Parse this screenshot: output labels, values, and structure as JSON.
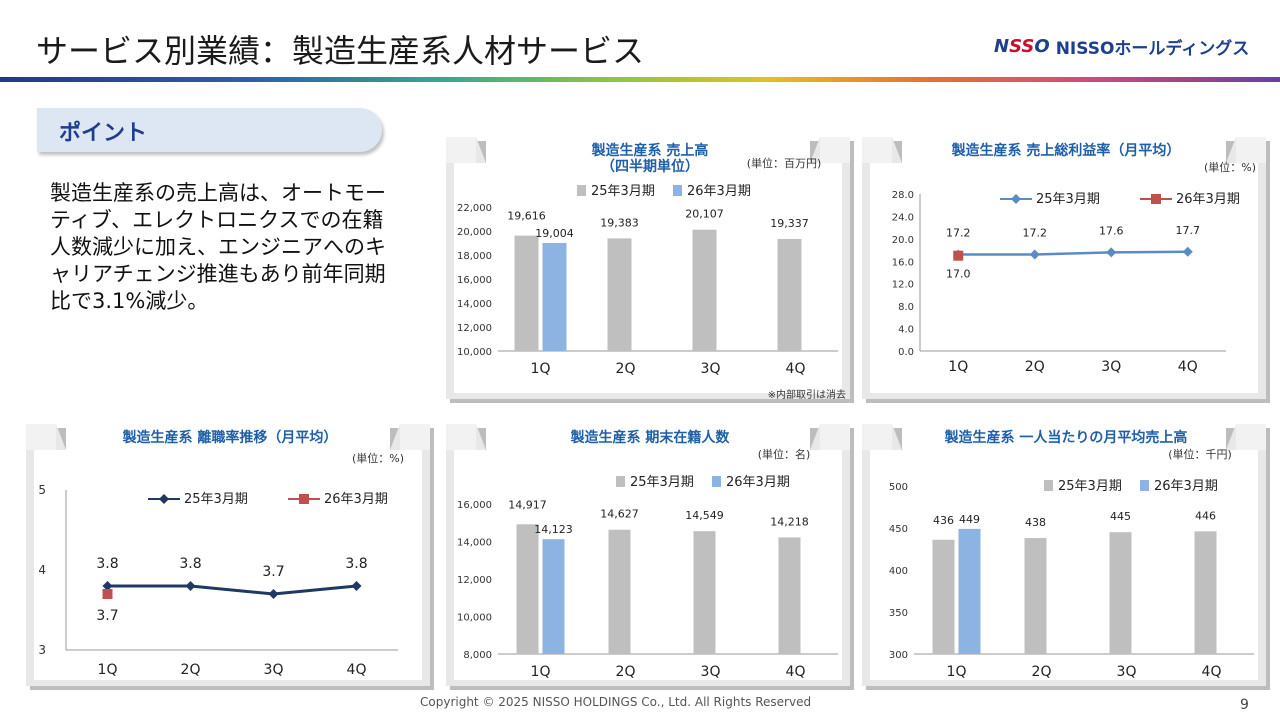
{
  "header": {
    "title": "サービス別業績：製造生産系人材サービス",
    "logo_mark_n": "N",
    "logo_mark_s": "SS",
    "logo_mark_o": "O",
    "logo_text": "NISSOホールディングス"
  },
  "point": {
    "tab_label": "ポイント",
    "body": "製造生産系の売上高は、オートモーティブ、エレクトロニクスでの在籍人数減少に加え、エンジニアへのキャリアチェンジ推進もあり前年同期比で3.1%減少。"
  },
  "footer": {
    "copyright": "Copyright © 2025 NISSO HOLDINGS Co., Ltd. All Rights Reserved",
    "page_number": "9"
  },
  "colors": {
    "bar_prev": "#bfbfbf",
    "bar_curr": "#8db3e2",
    "line_prev_sales": "#5b8bc5",
    "line_prev_turnover": "#1f3864",
    "marker_curr": "#c0504d",
    "title_blue": "#1f5fa8"
  },
  "chart_data": [
    {
      "id": "sales",
      "type": "bar",
      "title": "製造生産系 売上高",
      "subtitle": "（四半期単位）",
      "unit": "(単位：百万円)",
      "note": "※内部取引は消去",
      "categories": [
        "1Q",
        "2Q",
        "3Q",
        "4Q"
      ],
      "ylim": [
        10000,
        22000
      ],
      "yticks": [
        "10,000",
        "12,000",
        "14,000",
        "16,000",
        "18,000",
        "20,000",
        "22,000"
      ],
      "series": [
        {
          "name": "25年3月期",
          "values": [
            19616,
            19383,
            20107,
            19337
          ],
          "labels": [
            "19,616",
            "19,383",
            "20,107",
            "19,337"
          ]
        },
        {
          "name": "26年3月期",
          "values": [
            19004,
            null,
            null,
            null
          ],
          "labels": [
            "19,004",
            "",
            "",
            ""
          ]
        }
      ],
      "legend": "top"
    },
    {
      "id": "gross_margin",
      "type": "line",
      "title": "製造生産系 売上総利益率（月平均）",
      "unit": "(単位：%)",
      "categories": [
        "1Q",
        "2Q",
        "3Q",
        "4Q"
      ],
      "ylim": [
        0,
        28
      ],
      "yticks": [
        "0.0",
        "4.0",
        "8.0",
        "12.0",
        "16.0",
        "20.0",
        "24.0",
        "28.0"
      ],
      "series": [
        {
          "name": "25年3月期",
          "values": [
            17.2,
            17.2,
            17.6,
            17.7
          ],
          "labels": [
            "17.2",
            "17.2",
            "17.6",
            "17.7"
          ]
        },
        {
          "name": "26年3月期",
          "values": [
            17.0,
            null,
            null,
            null
          ],
          "labels": [
            "17.0",
            "",
            "",
            ""
          ]
        }
      ],
      "legend": "top"
    },
    {
      "id": "turnover",
      "type": "line",
      "title": "製造生産系 離職率推移（月平均）",
      "unit": "(単位：%)",
      "categories": [
        "1Q",
        "2Q",
        "3Q",
        "4Q"
      ],
      "ylim": [
        3,
        5
      ],
      "yticks": [
        "3",
        "4",
        "5"
      ],
      "series": [
        {
          "name": "25年3月期",
          "values": [
            3.8,
            3.8,
            3.7,
            3.8
          ],
          "labels": [
            "3.8",
            "3.8",
            "3.7",
            "3.8"
          ]
        },
        {
          "name": "26年3月期",
          "values": [
            3.7,
            null,
            null,
            null
          ],
          "labels": [
            "3.7",
            "",
            "",
            ""
          ]
        }
      ],
      "legend": "top"
    },
    {
      "id": "headcount",
      "type": "bar",
      "title": "製造生産系 期末在籍人数",
      "unit": "(単位：名)",
      "categories": [
        "1Q",
        "2Q",
        "3Q",
        "4Q"
      ],
      "ylim": [
        8000,
        16000
      ],
      "yticks": [
        "8,000",
        "10,000",
        "12,000",
        "14,000",
        "16,000"
      ],
      "series": [
        {
          "name": "25年3月期",
          "values": [
            14917,
            14627,
            14549,
            14218
          ],
          "labels": [
            "14,917",
            "14,627",
            "14,549",
            "14,218"
          ]
        },
        {
          "name": "26年3月期",
          "values": [
            14123,
            null,
            null,
            null
          ],
          "labels": [
            "14,123",
            "",
            "",
            ""
          ]
        }
      ],
      "legend": "top"
    },
    {
      "id": "per_person",
      "type": "bar",
      "title": "製造生産系 一人当たりの月平均売上高",
      "unit": "(単位：千円)",
      "categories": [
        "1Q",
        "2Q",
        "3Q",
        "4Q"
      ],
      "ylim": [
        300,
        500
      ],
      "yticks": [
        "300",
        "350",
        "400",
        "450",
        "500"
      ],
      "series": [
        {
          "name": "25年3月期",
          "values": [
            436,
            438,
            445,
            446
          ],
          "labels": [
            "436",
            "438",
            "445",
            "446"
          ]
        },
        {
          "name": "26年3月期",
          "values": [
            449,
            null,
            null,
            null
          ],
          "labels": [
            "449",
            "",
            "",
            ""
          ]
        }
      ],
      "legend": "top"
    }
  ]
}
